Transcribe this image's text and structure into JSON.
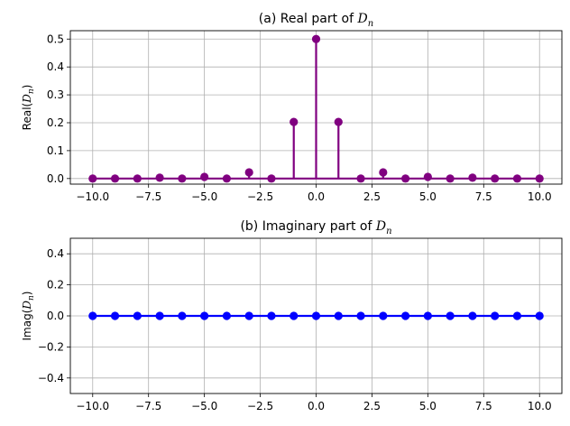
{
  "colors": {
    "real": "#800080",
    "imag": "#0000ff",
    "grid": "#b0b0b0"
  },
  "chart_data": [
    {
      "type": "stem",
      "title": "(a) Real part of D_n",
      "title_prefix": "(a) Real part of ",
      "title_symbol": "D",
      "title_sub": "n",
      "ylabel": "Real(D_n)",
      "ylabel_prefix": "Real(",
      "ylabel_symbol": "D",
      "ylabel_sub": "n",
      "ylabel_suffix": ")",
      "xlim": [
        -11,
        11
      ],
      "ylim": [
        -0.02,
        0.53
      ],
      "xticks": [
        -10.0,
        -7.5,
        -5.0,
        -2.5,
        0.0,
        2.5,
        5.0,
        7.5,
        10.0
      ],
      "xtick_labels": [
        "−10.0",
        "−7.5",
        "−5.0",
        "−2.5",
        "0.0",
        "2.5",
        "5.0",
        "7.5",
        "10.0"
      ],
      "yticks": [
        0.0,
        0.1,
        0.2,
        0.3,
        0.4,
        0.5
      ],
      "ytick_labels": [
        "0.0",
        "0.1",
        "0.2",
        "0.3",
        "0.4",
        "0.5"
      ],
      "grid": true,
      "color": "#800080",
      "x": [
        -10,
        -9,
        -8,
        -7,
        -6,
        -5,
        -4,
        -3,
        -2,
        -1,
        0,
        1,
        2,
        3,
        4,
        5,
        6,
        7,
        8,
        9,
        10
      ],
      "y": [
        0.0,
        0.0,
        0.0,
        0.003,
        0.0,
        0.006,
        0.0,
        0.022,
        0.0,
        0.203,
        0.5,
        0.203,
        0.0,
        0.022,
        0.0,
        0.006,
        0.0,
        0.003,
        0.0,
        0.0,
        0.0
      ]
    },
    {
      "type": "stem",
      "title": "(b) Imaginary part of D_n",
      "title_prefix": "(b) Imaginary part of ",
      "title_symbol": "D",
      "title_sub": "n",
      "ylabel": "Imag(D_n)",
      "ylabel_prefix": "Imag(",
      "ylabel_symbol": "D",
      "ylabel_sub": "n",
      "ylabel_suffix": ")",
      "xlim": [
        -11,
        11
      ],
      "ylim": [
        -0.5,
        0.5
      ],
      "xticks": [
        -10.0,
        -7.5,
        -5.0,
        -2.5,
        0.0,
        2.5,
        5.0,
        7.5,
        10.0
      ],
      "xtick_labels": [
        "−10.0",
        "−7.5",
        "−5.0",
        "−2.5",
        "0.0",
        "2.5",
        "5.0",
        "7.5",
        "10.0"
      ],
      "yticks": [
        -0.4,
        -0.2,
        0.0,
        0.2,
        0.4
      ],
      "ytick_labels": [
        "−0.4",
        "−0.2",
        "0.0",
        "0.2",
        "0.4"
      ],
      "grid": true,
      "color": "#0000ff",
      "x": [
        -10,
        -9,
        -8,
        -7,
        -6,
        -5,
        -4,
        -3,
        -2,
        -1,
        0,
        1,
        2,
        3,
        4,
        5,
        6,
        7,
        8,
        9,
        10
      ],
      "y": [
        0,
        0,
        0,
        0,
        0,
        0,
        0,
        0,
        0,
        0,
        0,
        0,
        0,
        0,
        0,
        0,
        0,
        0,
        0,
        0,
        0
      ]
    }
  ]
}
